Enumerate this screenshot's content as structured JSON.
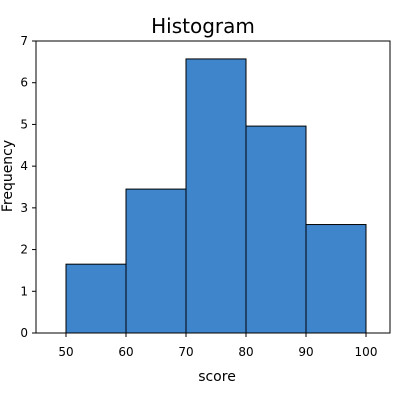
{
  "chart_data": {
    "type": "bar",
    "title": "Histogram",
    "xlabel": "score",
    "ylabel": "Frequency",
    "bins": [
      {
        "start": 50,
        "end": 60,
        "value": 1.65
      },
      {
        "start": 60,
        "end": 70,
        "value": 3.45
      },
      {
        "start": 70,
        "end": 80,
        "value": 6.57
      },
      {
        "start": 80,
        "end": 90,
        "value": 4.96
      },
      {
        "start": 90,
        "end": 100,
        "value": 2.6
      }
    ],
    "xlim": [
      45,
      104
    ],
    "ylim": [
      0,
      7
    ],
    "xticks": [
      50,
      60,
      70,
      80,
      90,
      100
    ],
    "yticks": [
      0,
      1,
      2,
      3,
      4,
      5,
      6,
      7
    ],
    "grid": false,
    "bar_color": "#3f85cb",
    "bar_edge_color": "#000000"
  }
}
